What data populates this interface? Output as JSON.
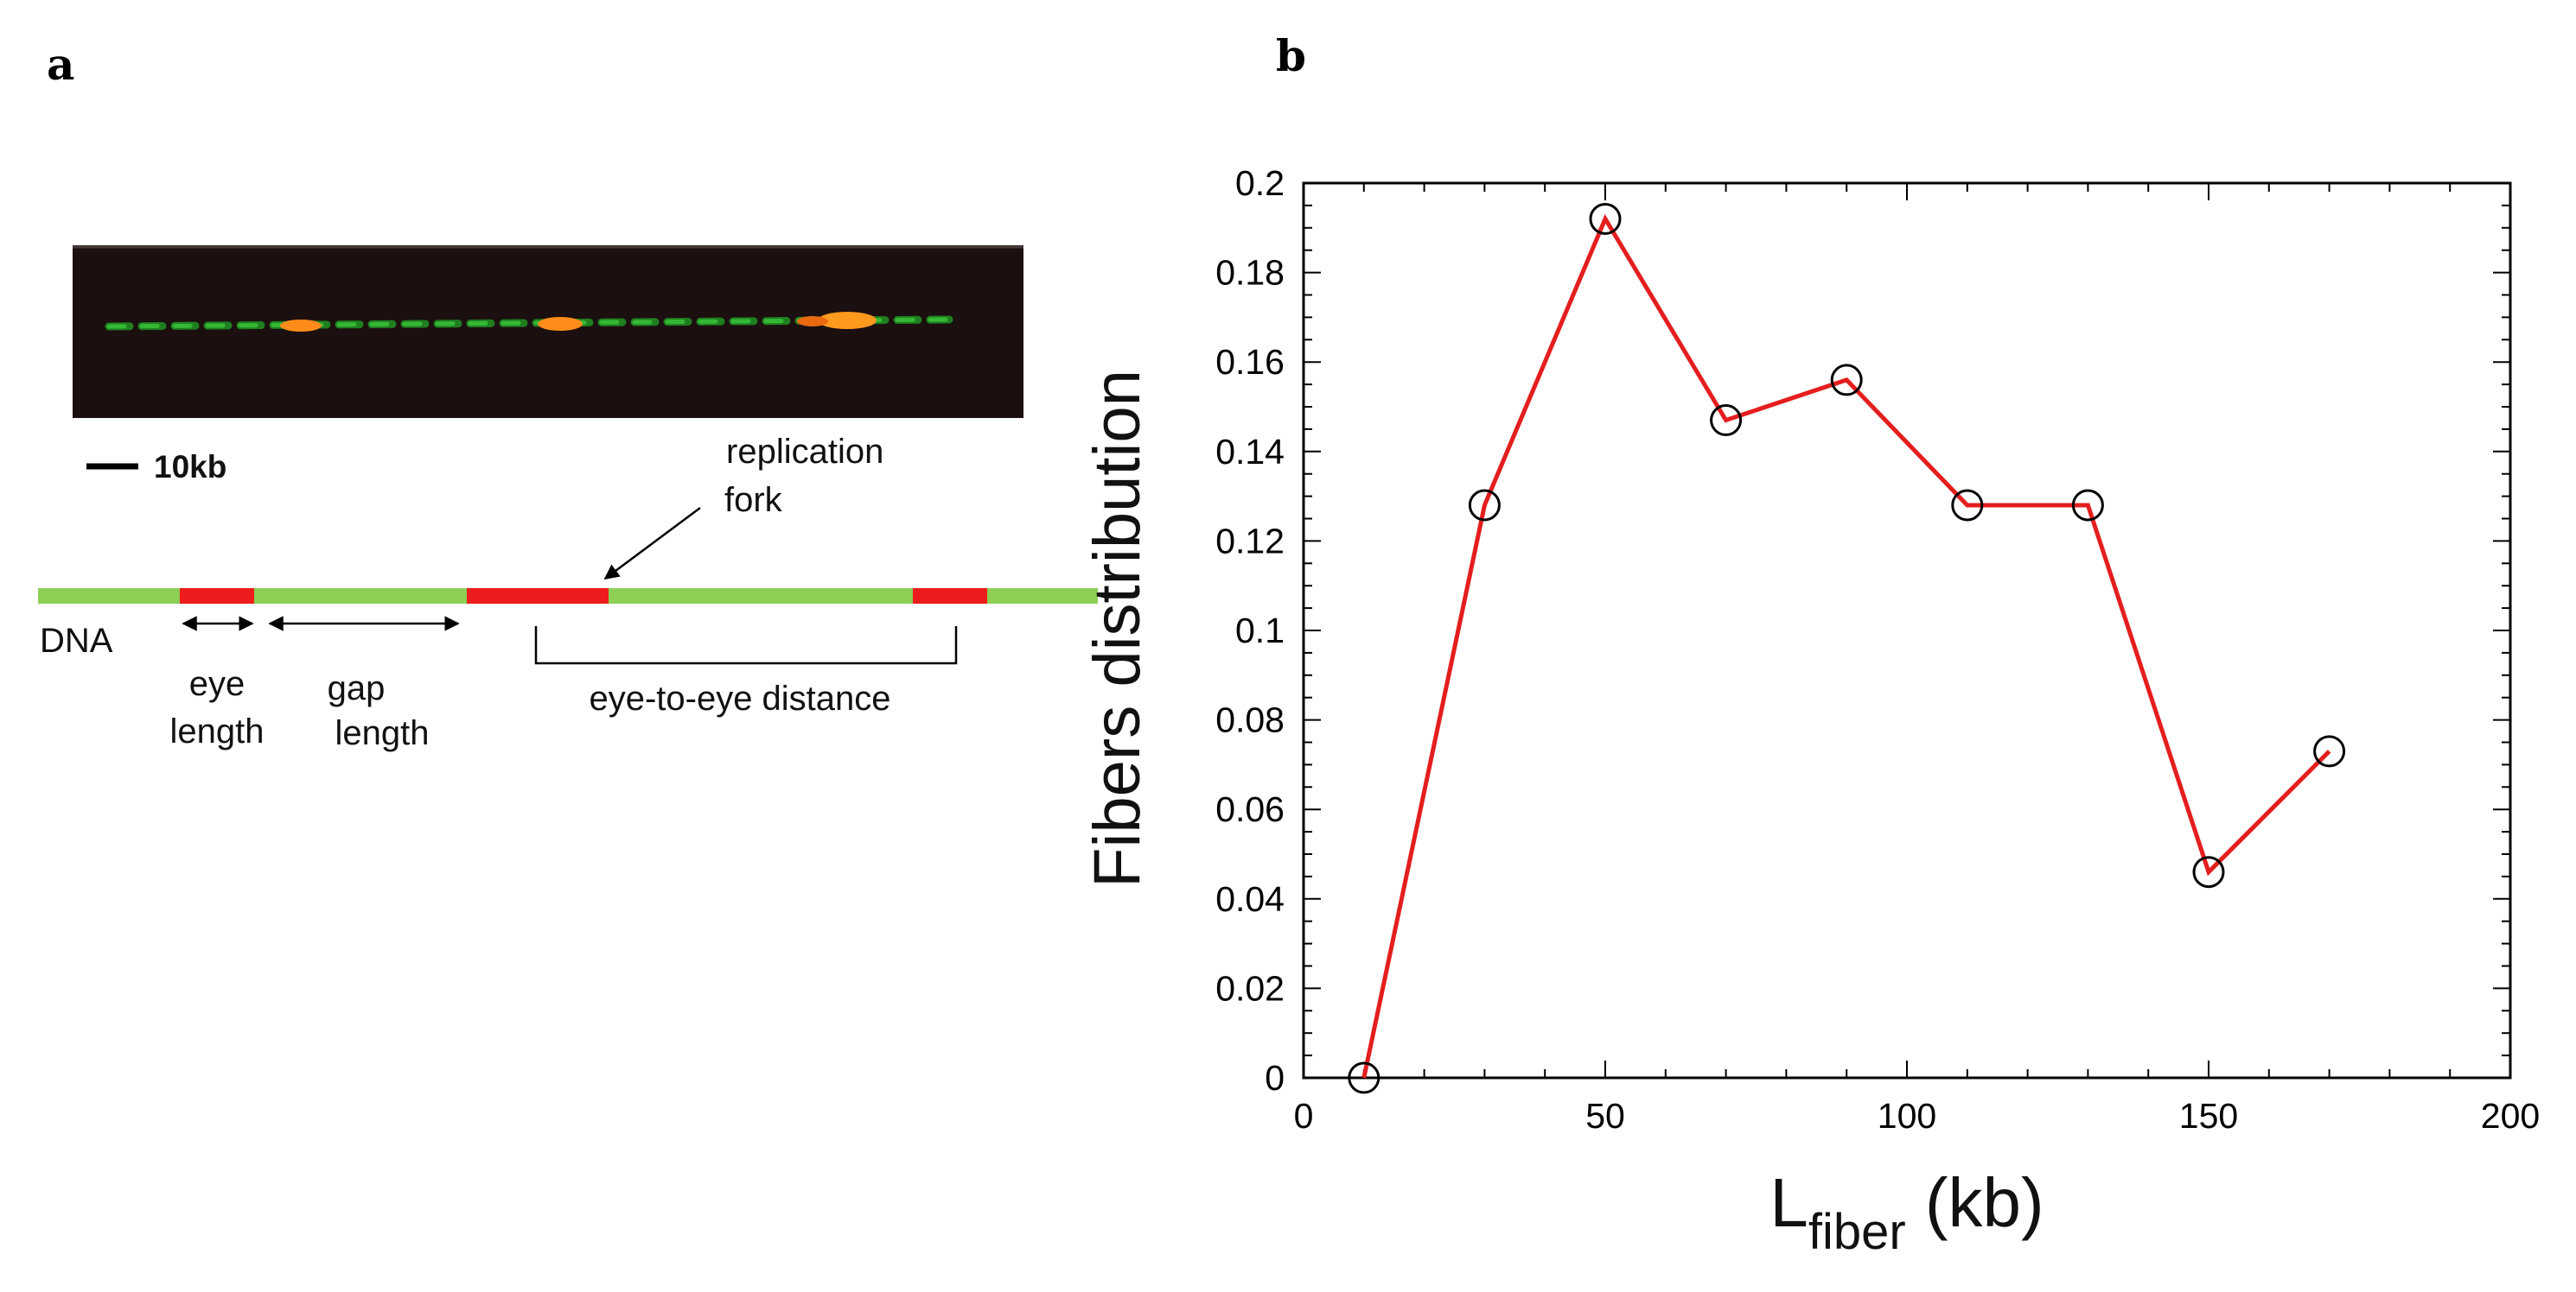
{
  "panel_a": {
    "letter": "a",
    "scale_bar_label": "10kb",
    "annotations": {
      "dna": "DNA",
      "eye_length": [
        "eye",
        "length"
      ],
      "gap_length": [
        "gap",
        "length"
      ],
      "eye_to_eye": "eye-to-eye distance",
      "replication_fork": [
        "replication",
        "fork"
      ]
    },
    "colors": {
      "dna": "#8dcf55",
      "eye": "#ee1c1c",
      "fiber_green": "#2aa52a",
      "fiber_signal": "#ff8c1a",
      "image_bg": "#1b0f0f"
    }
  },
  "panel_b": {
    "letter": "b"
  },
  "chart_data": {
    "type": "line",
    "title": "",
    "xlabel": {
      "main": "L",
      "sub": "fiber",
      "unit": " (kb)"
    },
    "ylabel": "Fibers distribution",
    "xlim": [
      0,
      200
    ],
    "ylim": [
      0,
      0.2
    ],
    "xticks": [
      0,
      50,
      100,
      150,
      200
    ],
    "xtick_labels": [
      "0",
      "50",
      "100",
      "150",
      "200"
    ],
    "yticks": [
      0,
      0.02,
      0.04,
      0.06,
      0.08,
      0.1,
      0.12,
      0.14,
      0.16,
      0.18,
      0.2
    ],
    "ytick_labels": [
      "0",
      "0.02",
      "0.04",
      "0.06",
      "0.08",
      "0.1",
      "0.12",
      "0.14",
      "0.16",
      "0.18",
      "0.2"
    ],
    "series": [
      {
        "name": "Fibers distribution",
        "x": [
          10,
          30,
          50,
          70,
          90,
          110,
          130,
          150,
          170
        ],
        "y": [
          0,
          0.128,
          0.192,
          0.147,
          0.156,
          0.128,
          0.128,
          0.046,
          0.073
        ],
        "color": "#e41e1e",
        "marker": "open-circle"
      }
    ],
    "grid": false
  }
}
